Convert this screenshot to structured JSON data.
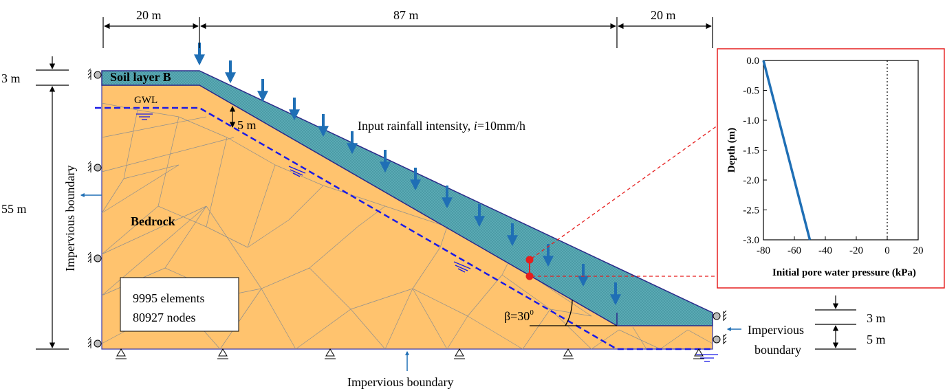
{
  "dimensions": {
    "top_left": "20 m",
    "top_middle": "87 m",
    "top_right": "20 m",
    "left_top": "3 m",
    "left_height": "55 m",
    "right_layer": "3 m",
    "right_depth": "5 m",
    "gwl_depth": "5 m"
  },
  "labels": {
    "soil_layer": "Soil layer B",
    "gwl": "GWL",
    "rainfall_prefix": "Input rainfall intensity, ",
    "rainfall_var": "i",
    "rainfall_value": "=10mm/h",
    "bedrock": "Bedrock",
    "mesh_elements": "9995 elements",
    "mesh_nodes": "80927 nodes",
    "angle": "β=30",
    "angle_sup": "0",
    "impervious_left": "Impervious boundary",
    "impervious_bottom": "Impervious boundary",
    "impervious_right_1": "Impervious",
    "impervious_right_2": "boundary"
  },
  "colors": {
    "bedrock": "#ffc36e",
    "soil_layer": "#5aaab4",
    "rain_arrow": "#1f6fb5",
    "gwl_line": "#1a1ae6",
    "monitor_point": "#e61e1e",
    "callout": "#e61e1e"
  },
  "chart_data": {
    "type": "line",
    "xlabel": "Initial pore water pressure (kPa)",
    "ylabel": "Depth (m)",
    "xlim": [
      -80,
      20
    ],
    "ylim": [
      -3.0,
      0.0
    ],
    "xticks": [
      "-80",
      "-60",
      "-40",
      "-20",
      "0",
      "20"
    ],
    "yticks": [
      "0.0",
      "-0.5",
      "-1.0",
      "-1.5",
      "-2.0",
      "-2.5",
      "-3.0"
    ],
    "series": [
      {
        "x": [
          -80,
          -50
        ],
        "y": [
          0.0,
          -3.0
        ],
        "color": "#1f6fb5"
      }
    ],
    "reference_line_x": 0
  }
}
